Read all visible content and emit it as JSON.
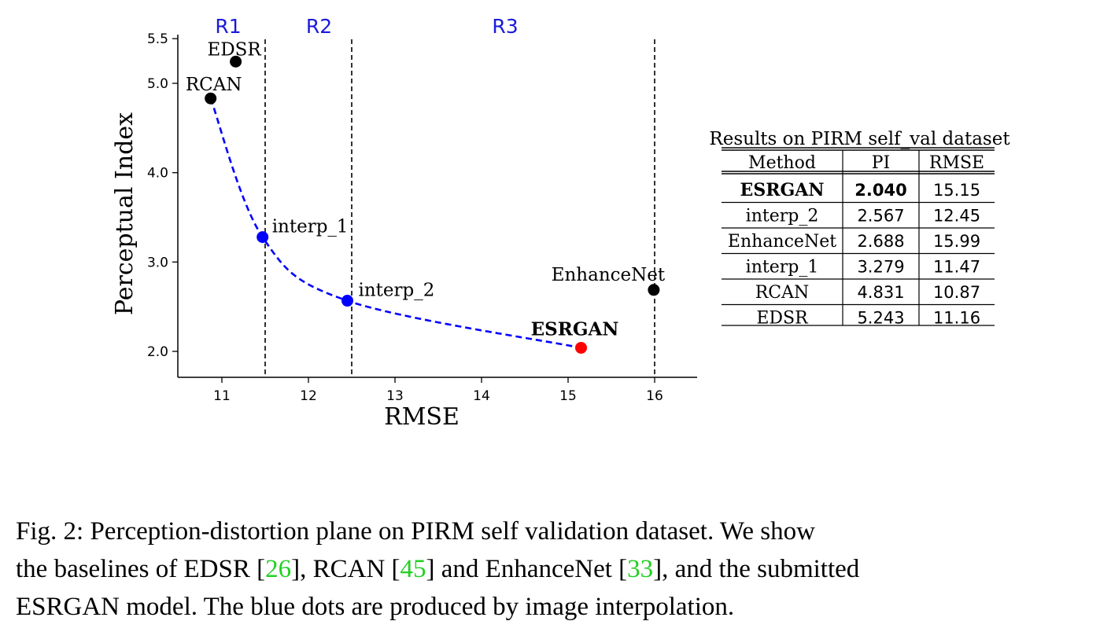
{
  "chart_data": [
    {
      "type": "scatter",
      "xlabel": "RMSE",
      "ylabel": "Perceptual Index",
      "xlim": [
        10.5,
        16.5
      ],
      "ylim": [
        1.7,
        5.5
      ],
      "x_ticks": [
        "11",
        "12",
        "13",
        "14",
        "15",
        "16"
      ],
      "y_ticks": [
        "2.0",
        "3.0",
        "4.0",
        "5.0",
        "5.5"
      ],
      "regions": [
        {
          "label": "R1",
          "x_center": 11.0
        },
        {
          "label": "R2",
          "x_center": 12.05
        },
        {
          "label": "R3",
          "x_center": 14.2
        }
      ],
      "region_boundaries": [
        11.5,
        12.5,
        16.0
      ],
      "points": [
        {
          "name": "EDSR",
          "x": 11.16,
          "y": 5.243,
          "color": "#000000",
          "bold": false
        },
        {
          "name": "RCAN",
          "x": 10.87,
          "y": 4.831,
          "color": "#000000",
          "bold": false
        },
        {
          "name": "interp_1",
          "x": 11.47,
          "y": 3.279,
          "color": "#0000ff",
          "bold": false
        },
        {
          "name": "interp_2",
          "x": 12.45,
          "y": 2.567,
          "color": "#0000ff",
          "bold": false
        },
        {
          "name": "ESRGAN",
          "x": 15.15,
          "y": 2.04,
          "color": "#ff0000",
          "bold": true
        },
        {
          "name": "EnhanceNet",
          "x": 15.99,
          "y": 2.688,
          "color": "#000000",
          "bold": false
        }
      ],
      "curve": {
        "color": "#0000ff",
        "through": [
          "RCAN",
          "interp_1",
          "interp_2",
          "ESRGAN"
        ]
      }
    },
    {
      "type": "table",
      "title": "Results on PIRM self_val dataset",
      "columns": [
        "Method",
        "PI",
        "RMSE"
      ],
      "rows": [
        {
          "method": "ESRGAN",
          "pi": "2.040",
          "rmse": "15.15",
          "bold": true
        },
        {
          "method": "interp_2",
          "pi": "2.567",
          "rmse": "12.45",
          "bold": false
        },
        {
          "method": "EnhanceNet",
          "pi": "2.688",
          "rmse": "15.99",
          "bold": false
        },
        {
          "method": "interp_1",
          "pi": "3.279",
          "rmse": "11.47",
          "bold": false
        },
        {
          "method": "RCAN",
          "pi": "4.831",
          "rmse": "10.87",
          "bold": false
        },
        {
          "method": "EDSR",
          "pi": "5.243",
          "rmse": "11.16",
          "bold": false
        }
      ]
    }
  ],
  "caption": {
    "label": "Fig. 2:",
    "line1": "Perception-distortion plane on PIRM self validation dataset. We show",
    "line2_a": "the baselines of EDSR [",
    "ref1": "26",
    "line2_b": "], RCAN [",
    "ref2": "45",
    "line2_c": "] and EnhanceNet [",
    "ref3": "33",
    "line2_d": "], and the submitted",
    "line3": "ESRGAN model. The blue dots are produced by image interpolation."
  },
  "colors": {
    "region_label": "#1a1adc",
    "citation": "#22d022"
  }
}
